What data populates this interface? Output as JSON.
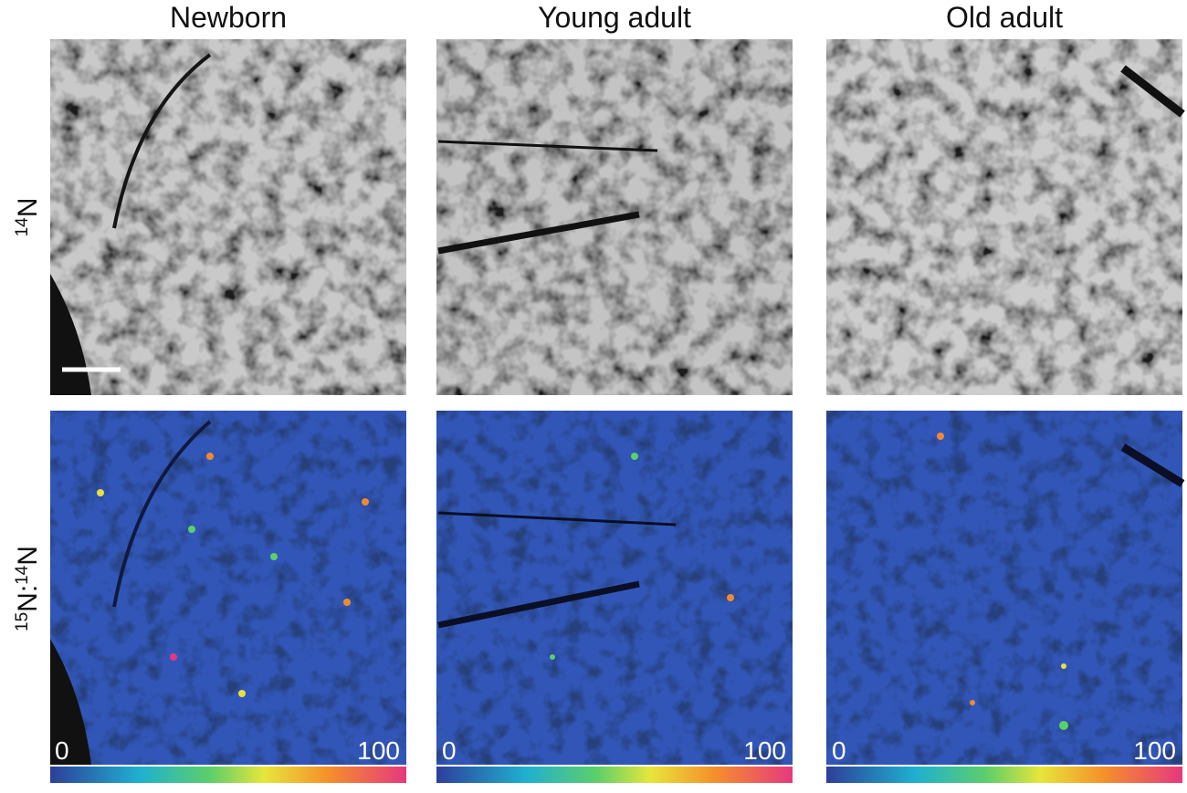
{
  "columns": [
    {
      "title": "Newborn"
    },
    {
      "title": "Young adult"
    },
    {
      "title": "Old adult"
    }
  ],
  "row_labels": [
    {
      "segments": [
        {
          "sup": "14"
        },
        {
          "text": "N"
        }
      ]
    },
    {
      "segments": [
        {
          "sup": "15"
        },
        {
          "text": "N:"
        },
        {
          "sup": "14"
        },
        {
          "text": "N"
        }
      ]
    }
  ],
  "colorbar": {
    "min_label": "0",
    "max_label": "100"
  }
}
